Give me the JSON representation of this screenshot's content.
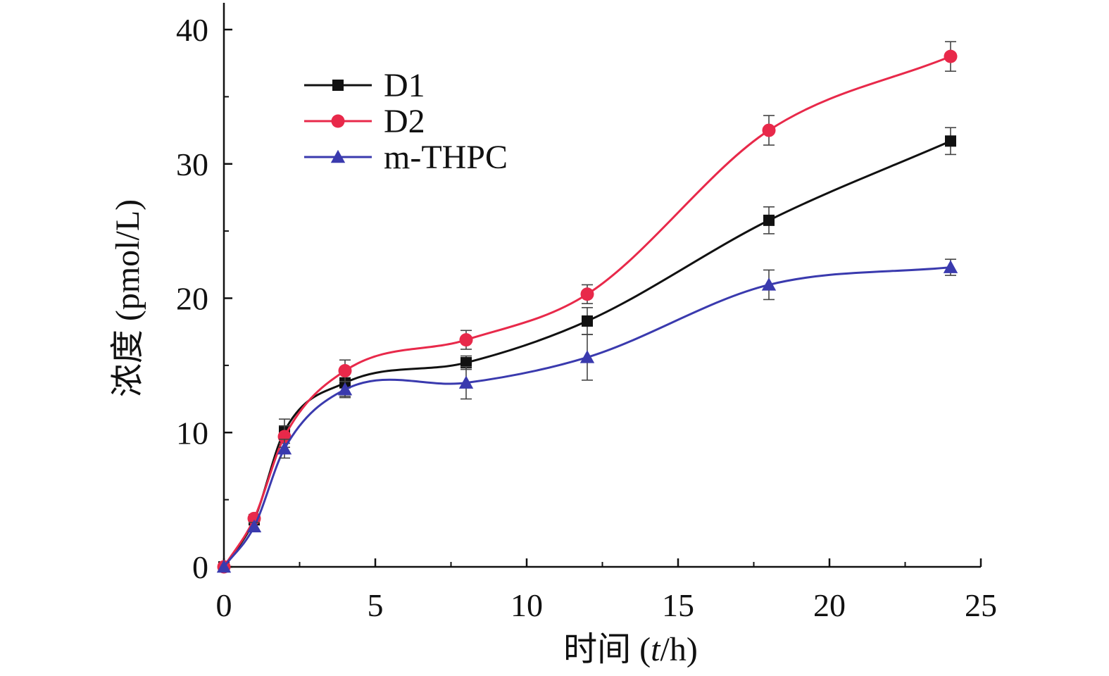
{
  "chart_data": {
    "type": "line",
    "title": "",
    "xlabel": "时间 (t/h)",
    "xlabel_parts": {
      "prefix": "时间 (",
      "var": "t",
      "suffix": "/h)"
    },
    "ylabel": "浓度 (pmol/L)",
    "xlim": [
      0,
      25
    ],
    "ylim": [
      0,
      40
    ],
    "xticks": [
      0,
      5,
      10,
      15,
      20,
      25
    ],
    "yticks": [
      0,
      10,
      20,
      30,
      40
    ],
    "grid": false,
    "legend_position": "top-left",
    "x": [
      0,
      1,
      2,
      4,
      8,
      12,
      18,
      24
    ],
    "series": [
      {
        "name": "D1",
        "marker": "square",
        "color": "#111111",
        "values": [
          0,
          3.5,
          10.1,
          13.7,
          15.2,
          18.3,
          25.8,
          31.7
        ],
        "errors": [
          0,
          0.3,
          0.9,
          1.0,
          0.5,
          1.0,
          1.0,
          1.0
        ]
      },
      {
        "name": "D2",
        "marker": "circle",
        "color": "#e8294a",
        "values": [
          0,
          3.6,
          9.7,
          14.6,
          16.9,
          20.3,
          32.5,
          38.0
        ],
        "errors": [
          0,
          0.3,
          0.8,
          0.8,
          0.7,
          0.7,
          1.1,
          1.1
        ]
      },
      {
        "name": "m-THPC",
        "marker": "triangle",
        "color": "#3a3aae",
        "values": [
          0,
          3.0,
          8.8,
          13.2,
          13.7,
          15.6,
          21.0,
          22.3
        ],
        "errors": [
          0,
          0.3,
          0.7,
          0.6,
          1.2,
          1.7,
          1.1,
          0.6
        ]
      }
    ]
  }
}
